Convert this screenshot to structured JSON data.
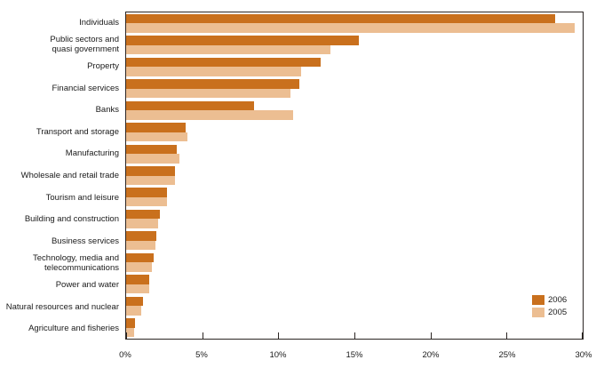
{
  "chart_data": {
    "type": "bar",
    "orientation": "horizontal",
    "title": "",
    "xlabel": "",
    "ylabel": "",
    "xlim": [
      0,
      30
    ],
    "x_tick_values": [
      0,
      5,
      10,
      15,
      20,
      25,
      30
    ],
    "x_tick_labels": [
      "0%",
      "5%",
      "10%",
      "15%",
      "20%",
      "25%",
      "30%"
    ],
    "grid": false,
    "legend_position": "inside-right",
    "categories": [
      "Individuals",
      "Public sectors and quasi government",
      "Property",
      "Financial services",
      "Banks",
      "Transport and storage",
      "Manufacturing",
      "Wholesale and retail trade",
      "Tourism and leisure",
      "Building and construction",
      "Business services",
      "Technology, media and telecommunications",
      "Power and water",
      "Natural resources and nuclear",
      "Agriculture and fisheries"
    ],
    "category_display_lines": [
      [
        "Individuals"
      ],
      [
        "Public sectors and",
        "quasi government"
      ],
      [
        "Property"
      ],
      [
        "Financial services"
      ],
      [
        "Banks"
      ],
      [
        "Transport and storage"
      ],
      [
        "Manufacturing"
      ],
      [
        "Wholesale and retail trade"
      ],
      [
        "Tourism and leisure"
      ],
      [
        "Building and construction"
      ],
      [
        "Business services"
      ],
      [
        "Technology, media and",
        "telecommunications"
      ],
      [
        "Power and water"
      ],
      [
        "Natural resources and nuclear"
      ],
      [
        "Agriculture and fisheries"
      ]
    ],
    "series": [
      {
        "name": "2006",
        "color": "#C9701D",
        "values": [
          28.2,
          15.3,
          12.8,
          11.4,
          8.4,
          3.9,
          3.3,
          3.2,
          2.7,
          2.2,
          2.0,
          1.8,
          1.5,
          1.1,
          0.6
        ]
      },
      {
        "name": "2005",
        "color": "#ECBE92",
        "values": [
          29.5,
          13.4,
          11.5,
          10.8,
          11.0,
          4.0,
          3.5,
          3.2,
          2.7,
          2.1,
          1.9,
          1.7,
          1.5,
          1.0,
          0.5
        ]
      }
    ]
  },
  "colors": {
    "axis": "#2b2523",
    "text": "#1a1a1a",
    "background": "#ffffff"
  }
}
